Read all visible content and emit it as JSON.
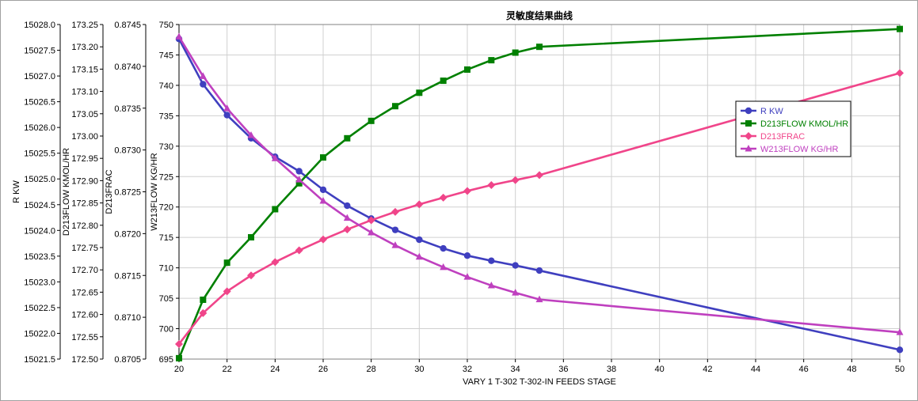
{
  "chart_data": {
    "type": "line",
    "title": "灵敏度结果曲线",
    "xlabel": "VARY   1 T-302 T-302-IN FEEDS STAGE",
    "x_ticks": [
      20,
      22,
      24,
      26,
      28,
      30,
      32,
      34,
      36,
      38,
      40,
      42,
      44,
      46,
      48,
      50
    ],
    "xlim": [
      20,
      50
    ],
    "grid": true,
    "legend_position": "right",
    "y_axes": [
      {
        "id": "r",
        "label": "R KW",
        "ylim": [
          15021.5,
          15028.0
        ],
        "ticks": [
          "15021.5",
          "15022.0",
          "15022.5",
          "15023.0",
          "15023.5",
          "15024.0",
          "15024.5",
          "15025.0",
          "15025.5",
          "15026.0",
          "15026.5",
          "15027.0",
          "15027.5",
          "15028.0"
        ]
      },
      {
        "id": "d213flow",
        "label": "D213FLOW KMOL/HR",
        "ylim": [
          172.5,
          173.25
        ],
        "ticks": [
          "172.50",
          "172.55",
          "172.60",
          "172.65",
          "172.70",
          "172.75",
          "172.80",
          "172.85",
          "172.90",
          "172.95",
          "173.00",
          "173.05",
          "173.10",
          "173.15",
          "173.20",
          "173.25"
        ]
      },
      {
        "id": "d213frac",
        "label": "D213FRAC",
        "ylim": [
          0.8705,
          0.8745
        ],
        "ticks": [
          "0.8705",
          "0.8710",
          "0.8715",
          "0.8720",
          "0.8725",
          "0.8730",
          "0.8735",
          "0.8740",
          "0.8745"
        ]
      },
      {
        "id": "w213flow",
        "label": "W213FLOW KG/HR",
        "ylim": [
          695,
          750
        ],
        "ticks": [
          "695",
          "700",
          "705",
          "710",
          "715",
          "720",
          "725",
          "730",
          "735",
          "740",
          "745",
          "750"
        ]
      }
    ],
    "x": [
      20,
      21,
      22,
      23,
      24,
      25,
      26,
      27,
      28,
      29,
      30,
      31,
      32,
      33,
      34,
      35,
      50
    ],
    "series": [
      {
        "name": "R KW",
        "axis": "r",
        "color": "#3f3fbf",
        "marker": "circle",
        "values": [
          15027.72,
          15026.84,
          15026.24,
          15025.79,
          15025.43,
          15025.15,
          15024.79,
          15024.48,
          15024.23,
          15024.01,
          15023.82,
          15023.65,
          15023.51,
          15023.41,
          15023.32,
          15023.22,
          15021.68
        ]
      },
      {
        "name": "D213FLOW KMOL/HR",
        "axis": "d213flow",
        "color": "#008000",
        "marker": "square",
        "values": [
          172.502,
          172.633,
          172.716,
          172.773,
          172.836,
          172.894,
          172.952,
          172.995,
          173.034,
          173.067,
          173.097,
          173.124,
          173.149,
          173.17,
          173.187,
          173.2,
          173.24
        ]
      },
      {
        "name": "D213FRAC",
        "axis": "d213frac",
        "color": "#f0458a",
        "marker": "diamond",
        "values": [
          0.87068,
          0.87105,
          0.87131,
          0.8715,
          0.87166,
          0.8718,
          0.87193,
          0.87205,
          0.87216,
          0.87226,
          0.87235,
          0.87243,
          0.87251,
          0.87258,
          0.87264,
          0.8727,
          0.87392
        ]
      },
      {
        "name": "W213FLOW KG/HR",
        "axis": "w213flow",
        "color": "#bf40bf",
        "marker": "triangle",
        "values": [
          748.0,
          741.5,
          736.2,
          731.8,
          728.0,
          724.5,
          721.0,
          718.2,
          715.8,
          713.7,
          711.8,
          710.1,
          708.5,
          707.1,
          705.9,
          704.8,
          699.4
        ]
      }
    ],
    "legend": [
      "R KW",
      "D213FLOW KMOL/HR",
      "D213FRAC",
      "W213FLOW KG/HR"
    ]
  }
}
